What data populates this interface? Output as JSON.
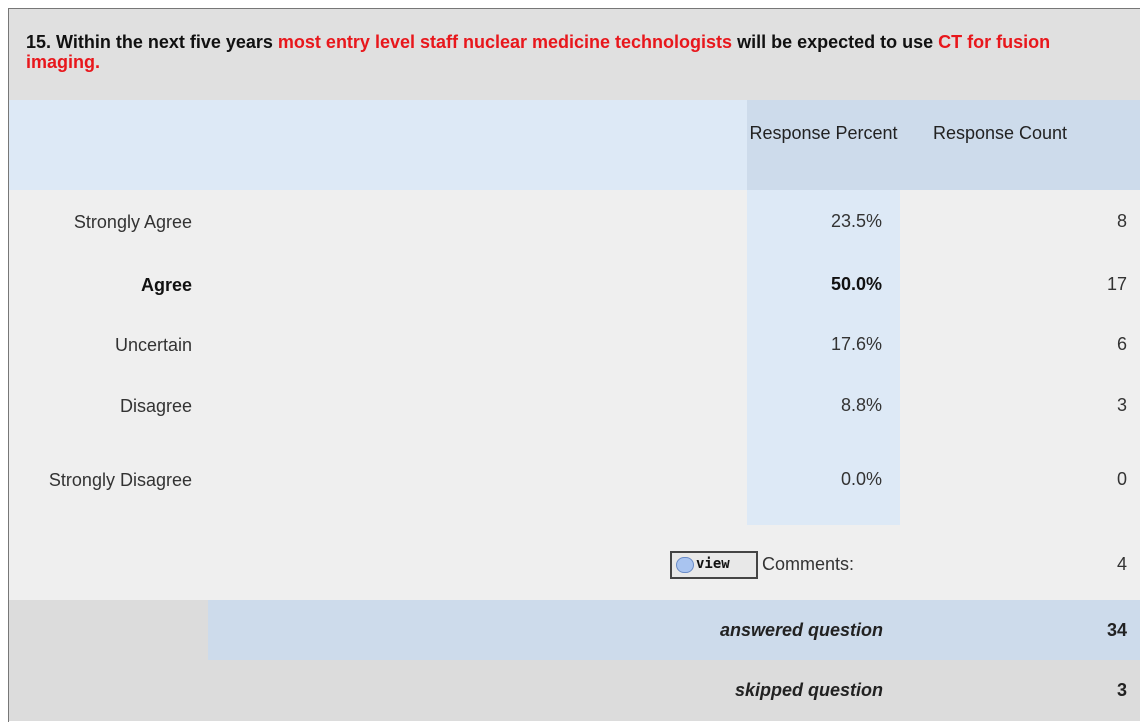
{
  "question": {
    "segments": [
      {
        "text": "15. Within the next five years ",
        "highlight": false
      },
      {
        "text": "most entry level staff nuclear medicine technologists",
        "highlight": true
      },
      {
        "text": " will be expected to use ",
        "highlight": false
      },
      {
        "text": "CT for fusion imaging.",
        "highlight": true
      }
    ]
  },
  "table": {
    "headers": [
      "Response Percent",
      "Response Count"
    ],
    "rows": [
      {
        "label": "Strongly Agree",
        "percent": "23.5%",
        "count": 8,
        "bold": false
      },
      {
        "label": "Agree",
        "percent": "50.0%",
        "count": 17,
        "bold": true
      },
      {
        "label": "Uncertain",
        "percent": "17.6%",
        "count": 6,
        "bold": false
      },
      {
        "label": "Disagree",
        "percent": "8.8%",
        "count": 3,
        "bold": false
      },
      {
        "label": "Strongly Disagree",
        "percent": "0.0%",
        "count": 0,
        "bold": false
      }
    ],
    "comments": {
      "button": "view",
      "label": "Comments:",
      "count": 4
    },
    "answered": {
      "label": "answered question",
      "count": 34
    },
    "skipped": {
      "label": "skipped question",
      "count": 3
    }
  }
}
